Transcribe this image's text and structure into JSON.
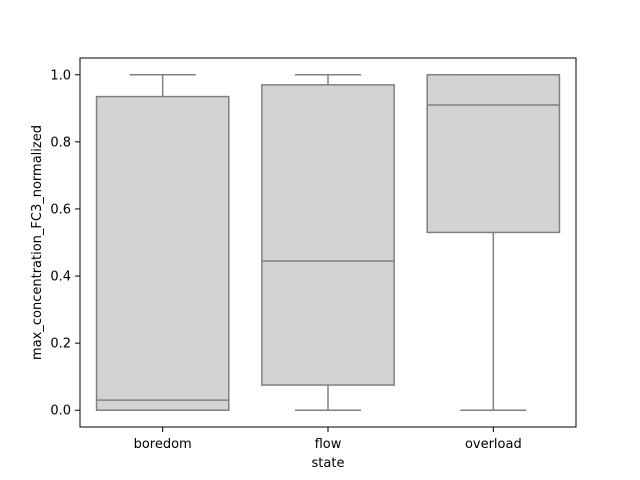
{
  "chart_data": {
    "type": "box",
    "xlabel": "state",
    "ylabel": "max_concentration_FC3_normalized",
    "categories": [
      "boredom",
      "flow",
      "overload"
    ],
    "boxes": [
      {
        "category": "boredom",
        "whisker_low": 0.0,
        "q1": 0.0,
        "median": 0.03,
        "q3": 0.935,
        "whisker_high": 1.0
      },
      {
        "category": "flow",
        "whisker_low": 0.0,
        "q1": 0.075,
        "median": 0.445,
        "q3": 0.97,
        "whisker_high": 1.0
      },
      {
        "category": "overload",
        "whisker_low": 0.0,
        "q1": 0.53,
        "median": 0.91,
        "q3": 1.0,
        "whisker_high": 1.0
      }
    ],
    "ylim": [
      -0.05,
      1.05
    ],
    "yticks": [
      "0.0",
      "0.2",
      "0.4",
      "0.6",
      "0.8",
      "1.0"
    ],
    "grid": false,
    "box_fill": "#d3d3d3",
    "box_edge": "#808080"
  }
}
